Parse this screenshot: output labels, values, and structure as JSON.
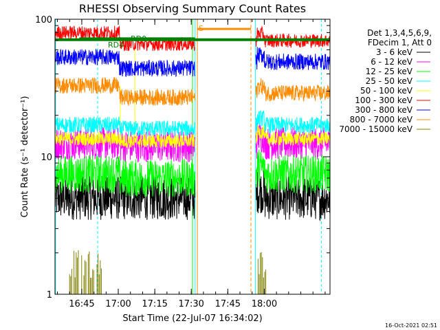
{
  "chart_data": {
    "type": "line",
    "title": "RHESSI Observing Summary Count Rates",
    "xlabel": "Start Time (22-Jul-07 16:34:02)",
    "ylabel": "Count Rate (s⁻¹ detector⁻¹)",
    "yscale": "log",
    "ylim": [
      1,
      100
    ],
    "xlim_min": [
      0,
      113
    ],
    "x_ticks": [
      {
        "min": 11,
        "label": "16:45"
      },
      {
        "min": 26,
        "label": "17:00"
      },
      {
        "min": 41,
        "label": "17:15"
      },
      {
        "min": 56,
        "label": "17:30"
      },
      {
        "min": 71,
        "label": "17:45"
      },
      {
        "min": 86,
        "label": "18:00"
      }
    ],
    "y_ticks": [
      {
        "value": 1,
        "label": "1"
      },
      {
        "value": 10,
        "label": "10"
      },
      {
        "value": 100,
        "label": "100"
      }
    ],
    "legend_header": [
      "Det 1,3,4,5,6,9,",
      "FDecim 1, Att 0"
    ],
    "series": [
      {
        "name": "3 - 6 keV",
        "color": "#000000",
        "pre": 5.0,
        "mid": 5.0,
        "post": 5.0
      },
      {
        "name": "6 - 12 keV",
        "color": "#ff00ff",
        "pre": 12.5,
        "mid": 12.0,
        "post": 12.5
      },
      {
        "name": "12 - 25 keV",
        "color": "#00ff00",
        "pre": 7.5,
        "mid": 7.0,
        "post": 7.5
      },
      {
        "name": "25 - 50 keV",
        "color": "#00ffff",
        "pre": 17.0,
        "mid": 16.0,
        "post": 17.0
      },
      {
        "name": "50 - 100 keV",
        "color": "#ffff00",
        "pre": 13.5,
        "mid": 13.0,
        "post": 13.5
      },
      {
        "name": "100 - 300 keV",
        "color": "#ff0000",
        "pre": 80,
        "mid": 66,
        "post": 70
      },
      {
        "name": "300 - 800 keV",
        "color": "#0000ff",
        "pre": 53,
        "mid": 44,
        "post": 49
      },
      {
        "name": "800 - 7000 keV",
        "color": "#ff8c00",
        "pre": 33,
        "mid": 27,
        "post": 29
      },
      {
        "name": "7000 - 15000 keV",
        "color": "#808000",
        "pre": 1.4,
        "mid": 1.0,
        "post": 1.0
      }
    ],
    "annotations": [
      {
        "label": "RD4",
        "color": "#008000"
      },
      {
        "label": "RD0",
        "color": "#008000"
      },
      {
        "label": "S",
        "color": "#ff8c00"
      }
    ],
    "footer_stamp": "16-Oct-2021 02:51"
  }
}
